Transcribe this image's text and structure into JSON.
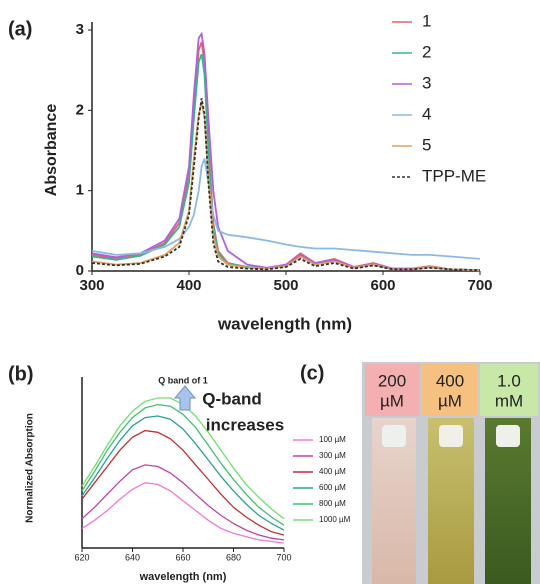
{
  "chart_data": [
    {
      "type": "line",
      "panel_label": "(a)",
      "x_label": "wavelength (nm)",
      "y_label": "Absorbance",
      "x": [
        300,
        325,
        350,
        375,
        390,
        400,
        405,
        410,
        413,
        416,
        420,
        425,
        430,
        440,
        460,
        480,
        500,
        515,
        530,
        550,
        570,
        590,
        610,
        630,
        648,
        670,
        700
      ],
      "xlim": [
        300,
        700
      ],
      "xticks": [
        300,
        400,
        500,
        600,
        700
      ],
      "ylim": [
        0,
        3
      ],
      "yticks": [
        0,
        1,
        2,
        3
      ],
      "series": [
        {
          "name": "1",
          "color": "#e8606a",
          "style": "solid",
          "values": [
            0.2,
            0.15,
            0.2,
            0.35,
            0.6,
            1.2,
            2.0,
            2.75,
            2.85,
            2.6,
            1.6,
            0.6,
            0.25,
            0.1,
            0.05,
            0.03,
            0.08,
            0.22,
            0.1,
            0.15,
            0.05,
            0.1,
            0.03,
            0.03,
            0.06,
            0.02,
            0.01
          ]
        },
        {
          "name": "2",
          "color": "#3bb58c",
          "style": "solid",
          "values": [
            0.18,
            0.14,
            0.19,
            0.33,
            0.55,
            1.1,
            1.9,
            2.6,
            2.7,
            2.45,
            1.5,
            0.55,
            0.22,
            0.09,
            0.05,
            0.03,
            0.07,
            0.2,
            0.09,
            0.13,
            0.05,
            0.09,
            0.03,
            0.03,
            0.05,
            0.02,
            0.01
          ]
        },
        {
          "name": "3",
          "color": "#b060d8",
          "style": "solid",
          "values": [
            0.22,
            0.17,
            0.22,
            0.38,
            0.65,
            1.3,
            2.2,
            2.9,
            2.95,
            2.7,
            1.9,
            1.0,
            0.55,
            0.25,
            0.08,
            0.04,
            0.08,
            0.2,
            0.1,
            0.14,
            0.05,
            0.09,
            0.03,
            0.03,
            0.05,
            0.02,
            0.01
          ]
        },
        {
          "name": "4",
          "color": "#8ab8e8",
          "style": "solid",
          "values": [
            0.25,
            0.2,
            0.22,
            0.3,
            0.4,
            0.55,
            0.7,
            1.0,
            1.3,
            1.4,
            1.1,
            0.7,
            0.5,
            0.45,
            0.42,
            0.38,
            0.33,
            0.3,
            0.28,
            0.28,
            0.26,
            0.24,
            0.22,
            0.2,
            0.2,
            0.18,
            0.15
          ]
        },
        {
          "name": "5",
          "color": "#e0a060",
          "style": "solid",
          "values": [
            0.12,
            0.08,
            0.1,
            0.2,
            0.35,
            0.75,
            1.4,
            1.95,
            2.1,
            1.9,
            1.2,
            0.45,
            0.18,
            0.08,
            0.04,
            0.03,
            0.06,
            0.18,
            0.08,
            0.12,
            0.04,
            0.08,
            0.02,
            0.02,
            0.05,
            0.02,
            0.01
          ]
        },
        {
          "name": "TPP-ME",
          "color": "#333333",
          "style": "dashed",
          "values": [
            0.1,
            0.07,
            0.09,
            0.18,
            0.3,
            0.7,
            1.3,
            1.9,
            2.15,
            1.95,
            1.1,
            0.35,
            0.12,
            0.05,
            0.03,
            0.02,
            0.05,
            0.15,
            0.06,
            0.1,
            0.03,
            0.07,
            0.02,
            0.02,
            0.04,
            0.02,
            0.01
          ]
        }
      ]
    },
    {
      "type": "line",
      "panel_label": "(b)",
      "title": "Q band of 1",
      "x_label": "wavelength (nm)",
      "y_label": "Normalized Absorption",
      "annotation": [
        "Q-band",
        "increases"
      ],
      "x": [
        620,
        625,
        630,
        635,
        640,
        645,
        650,
        655,
        660,
        665,
        670,
        675,
        680,
        685,
        690,
        695,
        700
      ],
      "xlim": [
        620,
        700
      ],
      "xticks": [
        620,
        640,
        660,
        680,
        700
      ],
      "ylim": [
        0,
        1
      ],
      "series": [
        {
          "name": "100 µM",
          "color": "#f07ad8",
          "style": "solid",
          "values": [
            0.12,
            0.17,
            0.23,
            0.3,
            0.36,
            0.4,
            0.39,
            0.35,
            0.29,
            0.23,
            0.17,
            0.12,
            0.09,
            0.07,
            0.05,
            0.04,
            0.03
          ]
        },
        {
          "name": "300 µM",
          "color": "#c040b0",
          "style": "solid",
          "values": [
            0.18,
            0.25,
            0.33,
            0.41,
            0.48,
            0.51,
            0.5,
            0.46,
            0.4,
            0.33,
            0.26,
            0.2,
            0.15,
            0.11,
            0.08,
            0.06,
            0.05
          ]
        },
        {
          "name": "400 µM",
          "color": "#c03030",
          "style": "solid",
          "values": [
            0.3,
            0.4,
            0.5,
            0.6,
            0.68,
            0.72,
            0.71,
            0.67,
            0.6,
            0.51,
            0.42,
            0.33,
            0.25,
            0.19,
            0.14,
            0.1,
            0.08
          ]
        },
        {
          "name": "600 µM",
          "color": "#30a090",
          "style": "solid",
          "values": [
            0.32,
            0.43,
            0.55,
            0.66,
            0.75,
            0.8,
            0.81,
            0.79,
            0.73,
            0.64,
            0.54,
            0.44,
            0.35,
            0.27,
            0.2,
            0.15,
            0.11
          ]
        },
        {
          "name": "800 µM",
          "color": "#40c070",
          "style": "solid",
          "values": [
            0.35,
            0.47,
            0.6,
            0.71,
            0.8,
            0.86,
            0.88,
            0.87,
            0.82,
            0.74,
            0.63,
            0.52,
            0.42,
            0.33,
            0.25,
            0.19,
            0.14
          ]
        },
        {
          "name": "1000 µM",
          "color": "#70e070",
          "style": "solid",
          "values": [
            0.38,
            0.5,
            0.63,
            0.75,
            0.84,
            0.9,
            0.92,
            0.92,
            0.88,
            0.81,
            0.71,
            0.6,
            0.49,
            0.39,
            0.31,
            0.24,
            0.18
          ]
        }
      ]
    }
  ],
  "photo_panel": {
    "panel_label": "(c)",
    "vials": [
      {
        "label": [
          "200",
          "µM"
        ]
      },
      {
        "label": [
          "400",
          "µM"
        ]
      },
      {
        "label": [
          "1.0",
          "mM"
        ]
      }
    ]
  }
}
